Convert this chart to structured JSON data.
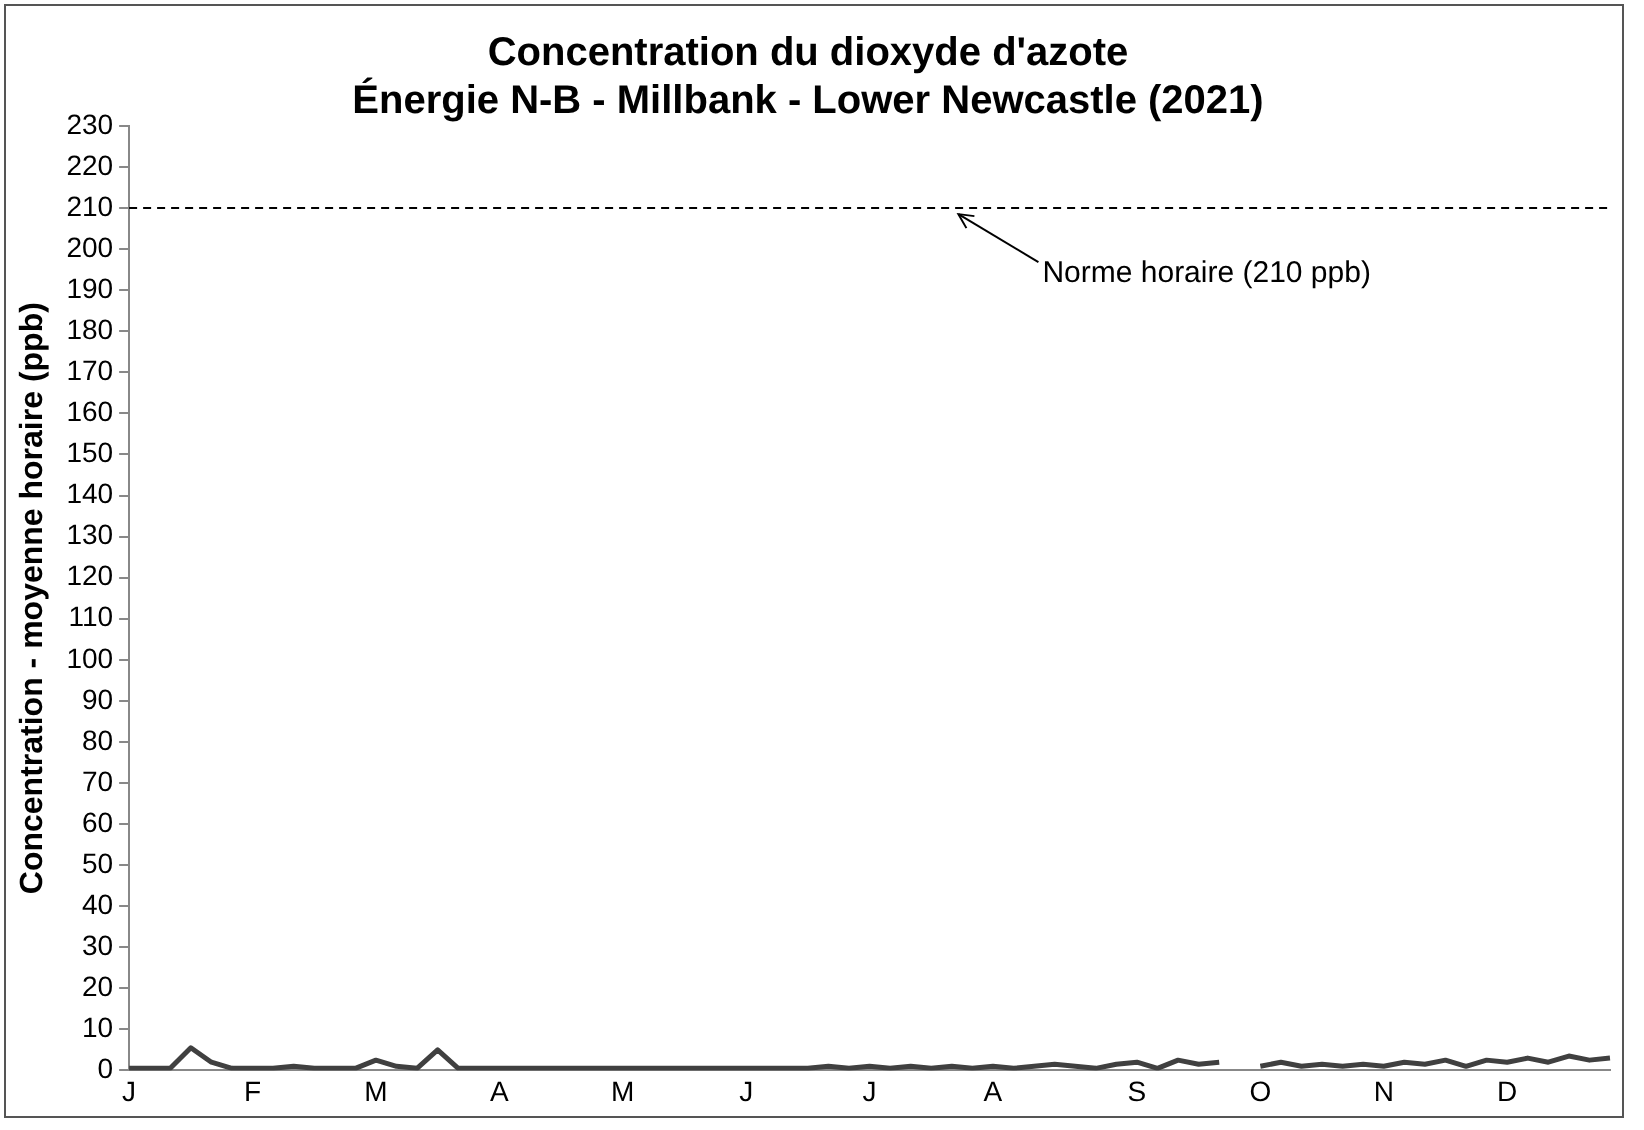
{
  "chart_data": {
    "type": "line",
    "title": "Concentration du dioxyde d'azote",
    "subtitle": "Énergie N-B - Millbank - Lower Newcastle (2021)",
    "ylabel": "Concentration - moyenne horaire (ppb)",
    "categories": [
      "J",
      null,
      null,
      null,
      null,
      null,
      "F",
      null,
      null,
      null,
      null,
      null,
      "M",
      null,
      null,
      null,
      null,
      null,
      "A",
      null,
      null,
      null,
      null,
      null,
      "M",
      null,
      null,
      null,
      null,
      null,
      "J",
      null,
      null,
      null,
      null,
      null,
      "J",
      null,
      null,
      null,
      null,
      null,
      "A",
      null,
      null,
      null,
      null,
      null,
      null,
      "S",
      null,
      null,
      null,
      null,
      null,
      "O",
      null,
      null,
      null,
      null,
      null,
      "N",
      null,
      null,
      null,
      null,
      null,
      "D",
      null,
      null,
      null,
      null,
      null
    ],
    "ylim": [
      0,
      230
    ],
    "yticks": [
      0,
      10,
      20,
      30,
      40,
      50,
      60,
      70,
      80,
      90,
      100,
      110,
      120,
      130,
      140,
      150,
      160,
      170,
      180,
      190,
      200,
      210,
      220,
      230
    ],
    "grid": false,
    "legend": false,
    "marker": "none",
    "line_style": "solid",
    "ref_lines": [
      {
        "axis": "y",
        "value": 210,
        "label": "Norme horaire (210 ppb)",
        "line_style": "dashed",
        "color": "#000000"
      }
    ],
    "series": [
      {
        "color": "#404040",
        "values": [
          0.5,
          0.5,
          0.5,
          5.5,
          2,
          0.5,
          0.5,
          0.5,
          1,
          0.5,
          0.5,
          0.5,
          2.5,
          1,
          0.5,
          5,
          0.5,
          0.5,
          0.5,
          0.5,
          0.5,
          0.5,
          0.5,
          0.5,
          0.5,
          0.5,
          0.5,
          0.5,
          0.5,
          0.5,
          0.5,
          0.5,
          0.5,
          0.5,
          1,
          0.5,
          1,
          0.5,
          1,
          0.5,
          1,
          0.5,
          1,
          0.5,
          1,
          1.5,
          1,
          0.5,
          1.5,
          2,
          0.5,
          2.5,
          1.5,
          2,
          null,
          1,
          2,
          1,
          1.5,
          1,
          1.5,
          1,
          2,
          1.5,
          2.5,
          1,
          2.5,
          2,
          3,
          2,
          3.5,
          2.5,
          3
        ]
      }
    ]
  }
}
